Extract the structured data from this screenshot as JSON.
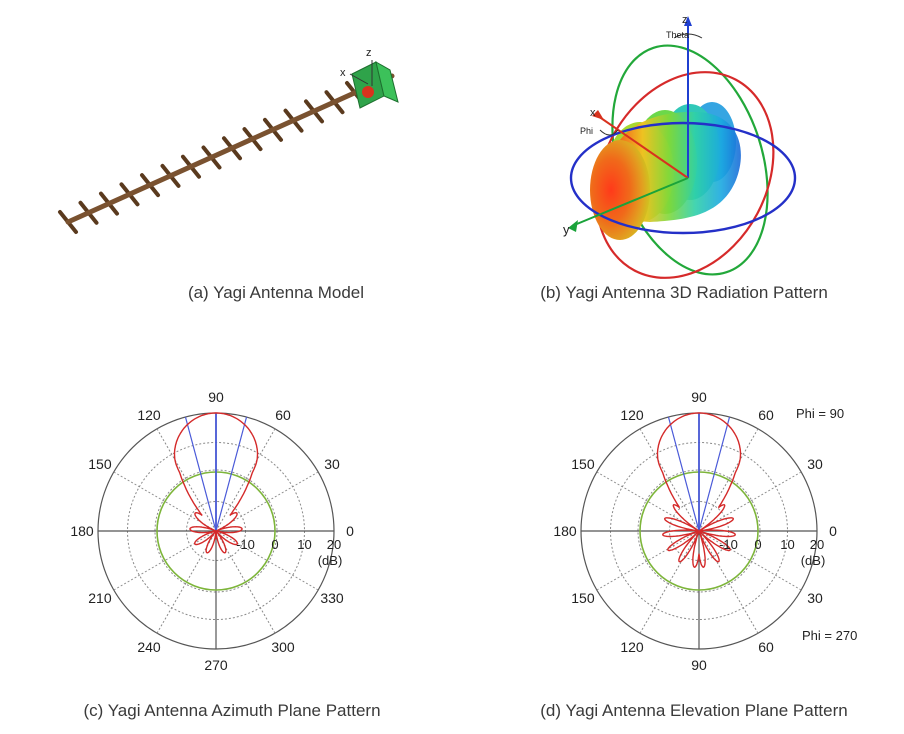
{
  "panels": {
    "a": {
      "caption": "(a) Yagi Antenna Model",
      "axis_labels": {
        "z": "z",
        "x": "x"
      },
      "colors": {
        "boom": "#7a5230",
        "element": "#5a3a1e",
        "feed": "#2fa34a",
        "feed_dot": "#d8321e"
      }
    },
    "b": {
      "caption": "(b) Yagi Antenna 3D Radiation Pattern",
      "axis_labels": {
        "z": "z",
        "theta": "Theta",
        "x": "x",
        "phi": "Phi",
        "y": "y"
      },
      "colors": {
        "z_axis": "#1f3fd0",
        "x_axis": "#d8321e",
        "y_axis": "#1aa33a",
        "ring_azimuth": "#2430c8",
        "ring_elev_1": "#d62a2a",
        "ring_elev_2": "#22a83a"
      }
    },
    "c": {
      "caption": "(c) Yagi Antenna Azimuth Plane Pattern",
      "angle_labels": [
        "0",
        "30",
        "60",
        "90",
        "120",
        "150",
        "180",
        "210",
        "240",
        "270",
        "300",
        "330"
      ],
      "radial_labels": [
        "-10",
        "0",
        "10",
        "20"
      ],
      "unit": "(dB)"
    },
    "d": {
      "caption": "(d) Yagi Antenna Elevation Plane Pattern",
      "angle_labels": [
        "0",
        "30",
        "60",
        "90",
        "120",
        "150",
        "180",
        "150",
        "120",
        "90",
        "60",
        "30"
      ],
      "radial_labels": [
        "-10",
        "0",
        "10",
        "20"
      ],
      "unit": "(dB)",
      "phi_top": "Phi = 90",
      "phi_bottom": "Phi = 270"
    }
  },
  "polar_style": {
    "pattern_color": "#d42a2a",
    "beamwidth_color": "#4a5ad8",
    "reference_ring_color": "#7db53a",
    "grid_color": "#555555",
    "dotted_grid_color": "#8a8a8a",
    "radial_range_db": [
      -20,
      20
    ],
    "reference_ring_db": 0,
    "main_lobe_direction_deg": 90,
    "half_power_beamwidth_deg": 30
  }
}
